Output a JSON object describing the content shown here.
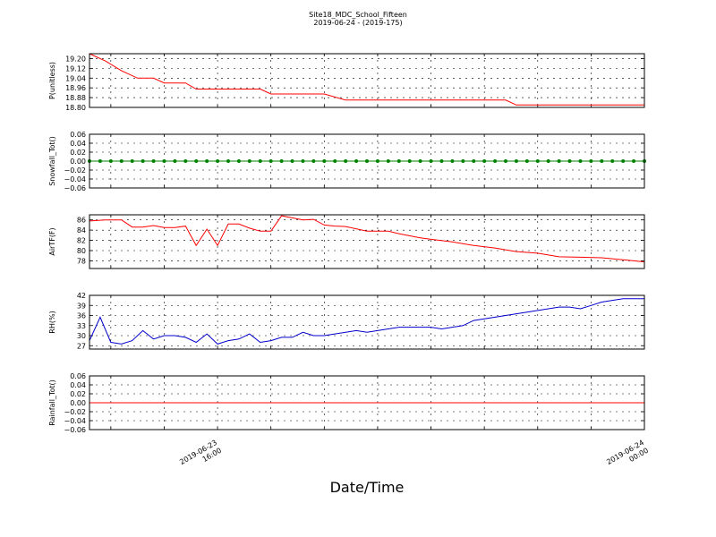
{
  "title": "Site18_MDC_School_Fifteen",
  "subtitle": "2019-06-24 - (2019-175)",
  "xlabel": "Date/Time",
  "x_ticks": [
    {
      "line1": "2019-06-23",
      "line2": "16:00",
      "t": 16
    },
    {
      "line1": "2019-06-24",
      "line2": "00:00",
      "t": 24
    }
  ],
  "chart_data": [
    {
      "type": "line",
      "ylabel": "P(unitless)",
      "ylim": [
        18.8,
        19.24
      ],
      "yticks": [
        "19.20",
        "19.12",
        "19.04",
        "18.96",
        "18.88",
        "18.80"
      ],
      "grid": true,
      "series": [
        {
          "color": "#ff0000",
          "x": [
            13.6,
            13.9,
            14.2,
            14.5,
            14.8,
            15.0,
            15.2,
            15.4,
            15.6,
            16.0,
            16.4,
            16.8,
            17.0,
            17.2,
            17.6,
            18.0,
            18.4,
            18.6,
            19.0,
            19.4,
            19.8,
            20.2,
            20.6,
            21.0,
            21.4,
            21.6,
            22.0,
            22.4,
            22.8,
            23.2,
            23.6,
            24.0
          ],
          "y": [
            19.24,
            19.18,
            19.1,
            19.04,
            19.04,
            19.0,
            19.0,
            19.0,
            18.95,
            18.95,
            18.95,
            18.95,
            18.91,
            18.91,
            18.91,
            18.91,
            18.86,
            18.86,
            18.86,
            18.86,
            18.86,
            18.86,
            18.86,
            18.86,
            18.86,
            18.82,
            18.82,
            18.82,
            18.82,
            18.82,
            18.82,
            18.82
          ]
        }
      ]
    },
    {
      "type": "line",
      "ylabel": "Snowfall_Tot()",
      "ylim": [
        -0.06,
        0.06
      ],
      "yticks": [
        "0.06",
        "0.04",
        "0.02",
        "0.00",
        "−0.02",
        "−0.04",
        "−0.06"
      ],
      "grid": true,
      "markers": true,
      "series": [
        {
          "color": "#008000",
          "x": [
            13.6,
            13.8,
            14.0,
            14.2,
            14.4,
            14.6,
            14.8,
            15.0,
            15.2,
            15.4,
            15.6,
            15.8,
            16.0,
            16.2,
            16.4,
            16.6,
            16.8,
            17.0,
            17.2,
            17.4,
            17.6,
            17.8,
            18.0,
            18.2,
            18.4,
            18.6,
            18.8,
            19.0,
            19.2,
            19.4,
            19.6,
            19.8,
            20.0,
            20.2,
            20.4,
            20.6,
            20.8,
            21.0,
            21.2,
            21.4,
            21.6,
            21.8,
            22.0,
            22.2,
            22.4,
            22.6,
            22.8,
            23.0,
            23.2,
            23.4,
            23.6,
            23.8,
            24.0
          ],
          "y": [
            0,
            0,
            0,
            0,
            0,
            0,
            0,
            0,
            0,
            0,
            0,
            0,
            0,
            0,
            0,
            0,
            0,
            0,
            0,
            0,
            0,
            0,
            0,
            0,
            0,
            0,
            0,
            0,
            0,
            0,
            0,
            0,
            0,
            0,
            0,
            0,
            0,
            0,
            0,
            0,
            0,
            0,
            0,
            0,
            0,
            0,
            0,
            0,
            0,
            0,
            0,
            0,
            0
          ]
        }
      ]
    },
    {
      "type": "line",
      "ylabel": "AirTF(F)",
      "ylim": [
        76.5,
        87
      ],
      "yticks": [
        "86",
        "84",
        "82",
        "80",
        "78"
      ],
      "grid": true,
      "series": [
        {
          "color": "#ff0000",
          "x": [
            13.6,
            13.9,
            14.2,
            14.4,
            14.6,
            14.8,
            15.0,
            15.2,
            15.4,
            15.6,
            15.8,
            16.0,
            16.2,
            16.4,
            16.6,
            16.8,
            17.0,
            17.2,
            17.4,
            17.6,
            17.8,
            18.0,
            18.2,
            18.4,
            18.8,
            19.2,
            19.4,
            19.8,
            20.0,
            20.4,
            20.8,
            21.2,
            21.6,
            22.0,
            22.4,
            22.8,
            23.2,
            23.4,
            23.8,
            24.0
          ],
          "y": [
            85.8,
            86.0,
            86.0,
            84.6,
            84.6,
            84.9,
            84.5,
            84.5,
            84.8,
            81.0,
            84.2,
            81.0,
            85.2,
            85.2,
            84.4,
            83.8,
            83.8,
            86.8,
            86.4,
            86.0,
            86.1,
            85.0,
            84.8,
            84.7,
            83.8,
            83.8,
            83.3,
            82.5,
            82.2,
            81.7,
            81.0,
            80.5,
            79.8,
            79.5,
            78.8,
            78.7,
            78.6,
            78.4,
            78.0,
            77.8
          ]
        }
      ]
    },
    {
      "type": "line",
      "ylabel": "RH(%)",
      "ylim": [
        26,
        42
      ],
      "yticks": [
        "42",
        "39",
        "36",
        "33",
        "30",
        "27"
      ],
      "grid": true,
      "series": [
        {
          "color": "#0000cc",
          "x": [
            13.6,
            13.8,
            14.0,
            14.2,
            14.4,
            14.6,
            14.8,
            15.0,
            15.2,
            15.4,
            15.6,
            15.8,
            16.0,
            16.2,
            16.4,
            16.6,
            16.8,
            17.0,
            17.2,
            17.4,
            17.6,
            17.8,
            18.0,
            18.2,
            18.4,
            18.6,
            18.8,
            19.0,
            19.2,
            19.4,
            19.6,
            19.8,
            20.0,
            20.2,
            20.4,
            20.6,
            20.8,
            21.0,
            21.2,
            21.4,
            21.6,
            21.8,
            22.0,
            22.2,
            22.4,
            22.6,
            22.8,
            23.0,
            23.2,
            23.4,
            23.6,
            23.8,
            24.0
          ],
          "y": [
            28.5,
            35.5,
            28.0,
            27.5,
            28.5,
            31.5,
            29.0,
            30.0,
            30.0,
            29.5,
            28.0,
            30.5,
            27.5,
            28.5,
            29.0,
            30.5,
            28.0,
            28.5,
            29.5,
            29.5,
            31.0,
            30.0,
            30.0,
            30.5,
            31.0,
            31.5,
            31.0,
            31.5,
            32.0,
            32.5,
            32.5,
            32.5,
            32.5,
            32.0,
            32.5,
            33.0,
            34.5,
            35.0,
            35.5,
            36.0,
            36.5,
            37.0,
            37.5,
            38.0,
            38.5,
            38.5,
            38.0,
            39.0,
            40.0,
            40.5,
            41.0,
            41.0,
            41.0
          ]
        }
      ]
    },
    {
      "type": "line",
      "ylabel": "Rainfall_Tot()",
      "ylim": [
        -0.06,
        0.06
      ],
      "yticks": [
        "0.06",
        "0.04",
        "0.02",
        "0.00",
        "−0.02",
        "−0.04",
        "−0.06"
      ],
      "grid": true,
      "series": [
        {
          "color": "#ff0000",
          "x": [
            13.6,
            24.0
          ],
          "y": [
            0,
            0
          ]
        }
      ]
    }
  ]
}
